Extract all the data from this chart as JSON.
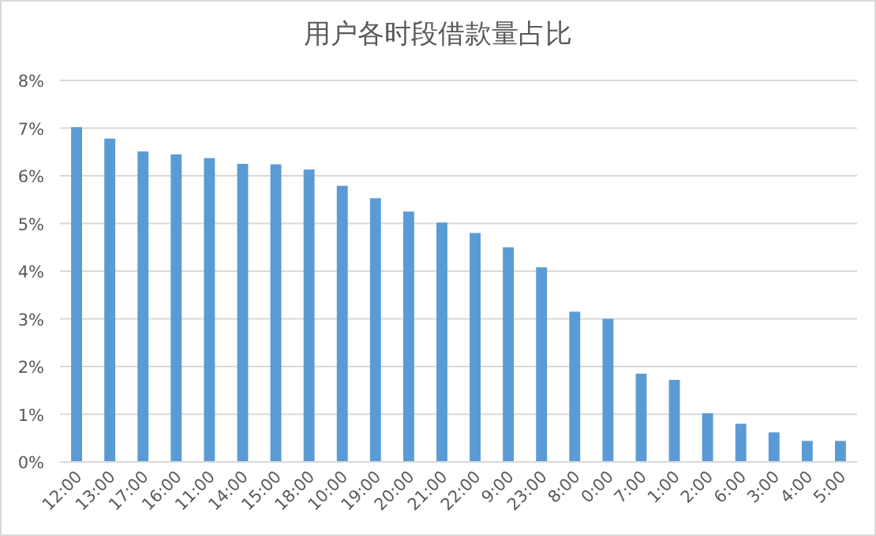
{
  "chart_data": {
    "type": "bar",
    "title": "用户各时段借款量占比",
    "categories": [
      "12:00",
      "13:00",
      "17:00",
      "16:00",
      "11:00",
      "14:00",
      "15:00",
      "18:00",
      "10:00",
      "19:00",
      "20:00",
      "21:00",
      "22:00",
      "9:00",
      "23:00",
      "8:00",
      "0:00",
      "7:00",
      "1:00",
      "2:00",
      "6:00",
      "3:00",
      "4:00",
      "5:00"
    ],
    "values": [
      7.02,
      6.78,
      6.51,
      6.45,
      6.37,
      6.25,
      6.24,
      6.13,
      5.79,
      5.53,
      5.25,
      5.02,
      4.8,
      4.5,
      4.08,
      3.15,
      3.0,
      1.85,
      1.72,
      1.02,
      0.8,
      0.62,
      0.44,
      0.44
    ],
    "color": "#5b9bd5",
    "ylim": [
      0,
      8
    ],
    "yticks": [
      {
        "value": 0,
        "label": "0%"
      },
      {
        "value": 1,
        "label": "1%"
      },
      {
        "value": 2,
        "label": "2%"
      },
      {
        "value": 3,
        "label": "3%"
      },
      {
        "value": 4,
        "label": "4%"
      },
      {
        "value": 5,
        "label": "5%"
      },
      {
        "value": 6,
        "label": "6%"
      },
      {
        "value": 7,
        "label": "7%"
      },
      {
        "value": 8,
        "label": "8%"
      }
    ],
    "grid": "y"
  }
}
